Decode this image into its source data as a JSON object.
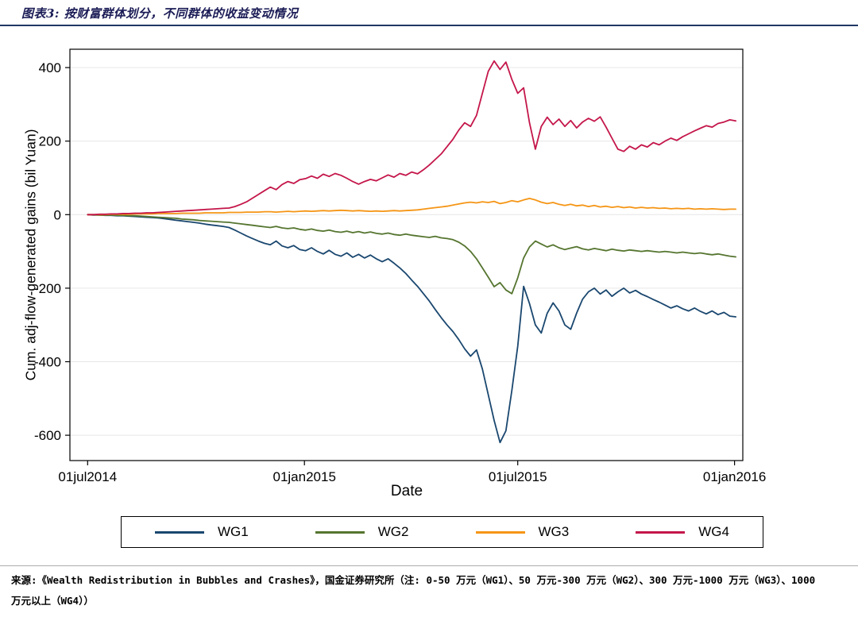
{
  "page": {
    "title": "图表3: 按财富群体划分，不同群体的收益变动情况",
    "source_note_line1": "来源:《Wealth Redistribution in Bubbles and Crashes》，国金证券研究所（注: 0-50 万元（WG1）、50 万元-300 万元（WG2）、300 万元-1000 万元（WG3）、1000",
    "source_note_line2": "万元以上（WG4））"
  },
  "chart_data": {
    "type": "line",
    "title": "",
    "xlabel": "Date",
    "ylabel": "Cum. adj-flow-generated gains (bil Yuan)",
    "x_unit": "days since 01jul2014",
    "grid": "horizontal",
    "legend_position": "bottom",
    "xlim": [
      -15,
      556
    ],
    "ylim": [
      -669,
      450
    ],
    "y_ticks": [
      400,
      200,
      0,
      -200,
      -400,
      -600
    ],
    "x_ticks": [
      {
        "day": 0,
        "label": "01jul2014"
      },
      {
        "day": 184,
        "label": "01jan2015"
      },
      {
        "day": 365,
        "label": "01jul2015"
      },
      {
        "day": 549,
        "label": "01jan2016"
      }
    ],
    "x": [
      0,
      5,
      10,
      15,
      20,
      25,
      30,
      35,
      40,
      45,
      50,
      55,
      60,
      65,
      70,
      75,
      80,
      85,
      90,
      95,
      100,
      105,
      110,
      115,
      120,
      125,
      130,
      135,
      140,
      145,
      150,
      155,
      160,
      165,
      170,
      175,
      180,
      185,
      190,
      195,
      200,
      205,
      210,
      215,
      220,
      225,
      230,
      235,
      240,
      245,
      250,
      255,
      260,
      265,
      270,
      275,
      280,
      285,
      290,
      295,
      300,
      305,
      310,
      315,
      320,
      325,
      330,
      335,
      340,
      345,
      350,
      355,
      360,
      365,
      370,
      375,
      380,
      385,
      390,
      395,
      400,
      405,
      410,
      415,
      420,
      425,
      430,
      435,
      440,
      445,
      450,
      455,
      460,
      465,
      470,
      475,
      480,
      485,
      490,
      495,
      500,
      505,
      510,
      515,
      520,
      525,
      530,
      535,
      540,
      545,
      550
    ],
    "series": [
      {
        "name": "WG1",
        "color": "#1a476f",
        "values": [
          0,
          -1,
          -1,
          -2,
          -2,
          -3,
          -3,
          -4,
          -5,
          -6,
          -7,
          -8,
          -9,
          -11,
          -13,
          -15,
          -17,
          -19,
          -21,
          -23,
          -26,
          -28,
          -30,
          -32,
          -35,
          -42,
          -50,
          -58,
          -65,
          -72,
          -78,
          -82,
          -72,
          -85,
          -90,
          -84,
          -95,
          -98,
          -90,
          -100,
          -107,
          -97,
          -108,
          -113,
          -104,
          -116,
          -108,
          -118,
          -110,
          -120,
          -128,
          -120,
          -132,
          -145,
          -160,
          -178,
          -195,
          -215,
          -235,
          -258,
          -280,
          -300,
          -318,
          -340,
          -365,
          -385,
          -368,
          -420,
          -490,
          -560,
          -620,
          -588,
          -478,
          -358,
          -195,
          -242,
          -300,
          -322,
          -268,
          -240,
          -262,
          -300,
          -312,
          -268,
          -230,
          -210,
          -200,
          -216,
          -205,
          -222,
          -210,
          -200,
          -213,
          -206,
          -216,
          -223,
          -231,
          -238,
          -246,
          -254,
          -248,
          -256,
          -262,
          -254,
          -263,
          -270,
          -262,
          -272,
          -266,
          -276,
          -278
        ]
      },
      {
        "name": "WG2",
        "color": "#55752f",
        "values": [
          0,
          0,
          -1,
          -1,
          -1,
          -2,
          -2,
          -3,
          -3,
          -4,
          -5,
          -6,
          -7,
          -8,
          -9,
          -10,
          -12,
          -13,
          -14,
          -16,
          -17,
          -18,
          -19,
          -20,
          -21,
          -23,
          -25,
          -27,
          -29,
          -31,
          -33,
          -35,
          -32,
          -36,
          -38,
          -36,
          -40,
          -42,
          -39,
          -43,
          -45,
          -42,
          -46,
          -48,
          -45,
          -49,
          -46,
          -50,
          -47,
          -51,
          -53,
          -50,
          -54,
          -56,
          -53,
          -56,
          -58,
          -60,
          -62,
          -59,
          -63,
          -65,
          -68,
          -75,
          -85,
          -100,
          -120,
          -145,
          -170,
          -196,
          -185,
          -205,
          -215,
          -172,
          -118,
          -88,
          -72,
          -80,
          -88,
          -82,
          -90,
          -95,
          -91,
          -87,
          -93,
          -96,
          -92,
          -95,
          -98,
          -94,
          -97,
          -99,
          -96,
          -98,
          -100,
          -98,
          -100,
          -102,
          -100,
          -102,
          -104,
          -102,
          -104,
          -106,
          -104,
          -107,
          -109,
          -107,
          -110,
          -113,
          -115
        ]
      },
      {
        "name": "WG3",
        "color": "#f59515",
        "values": [
          0,
          0,
          0,
          0,
          1,
          1,
          1,
          1,
          2,
          2,
          2,
          2,
          3,
          3,
          3,
          3,
          4,
          4,
          4,
          4,
          5,
          5,
          5,
          5,
          6,
          6,
          6,
          7,
          7,
          7,
          8,
          8,
          7,
          8,
          9,
          8,
          9,
          10,
          9,
          10,
          11,
          10,
          11,
          12,
          11,
          10,
          11,
          10,
          9,
          10,
          9,
          10,
          11,
          10,
          11,
          12,
          13,
          15,
          17,
          19,
          21,
          23,
          26,
          29,
          32,
          34,
          32,
          35,
          33,
          36,
          30,
          33,
          38,
          35,
          40,
          44,
          40,
          34,
          30,
          33,
          28,
          25,
          28,
          24,
          26,
          22,
          25,
          21,
          23,
          20,
          22,
          19,
          21,
          18,
          20,
          18,
          19,
          17,
          18,
          16,
          17,
          16,
          17,
          15,
          16,
          15,
          16,
          15,
          14,
          15,
          15
        ]
      },
      {
        "name": "WG4",
        "color": "#c4164a",
        "values": [
          0,
          0,
          1,
          1,
          2,
          2,
          3,
          3,
          4,
          4,
          5,
          5,
          6,
          7,
          8,
          9,
          10,
          11,
          12,
          13,
          14,
          15,
          16,
          17,
          18,
          22,
          28,
          35,
          45,
          55,
          65,
          75,
          68,
          82,
          90,
          85,
          95,
          98,
          105,
          99,
          110,
          104,
          112,
          107,
          99,
          90,
          83,
          90,
          96,
          92,
          100,
          108,
          102,
          112,
          107,
          116,
          111,
          122,
          135,
          150,
          165,
          185,
          205,
          230,
          250,
          240,
          270,
          330,
          390,
          418,
          395,
          415,
          368,
          330,
          345,
          250,
          178,
          240,
          265,
          245,
          260,
          240,
          256,
          236,
          252,
          262,
          254,
          266,
          238,
          208,
          178,
          172,
          186,
          178,
          190,
          184,
          196,
          190,
          200,
          208,
          202,
          212,
          220,
          228,
          235,
          242,
          238,
          248,
          252,
          258,
          255
        ]
      }
    ]
  }
}
